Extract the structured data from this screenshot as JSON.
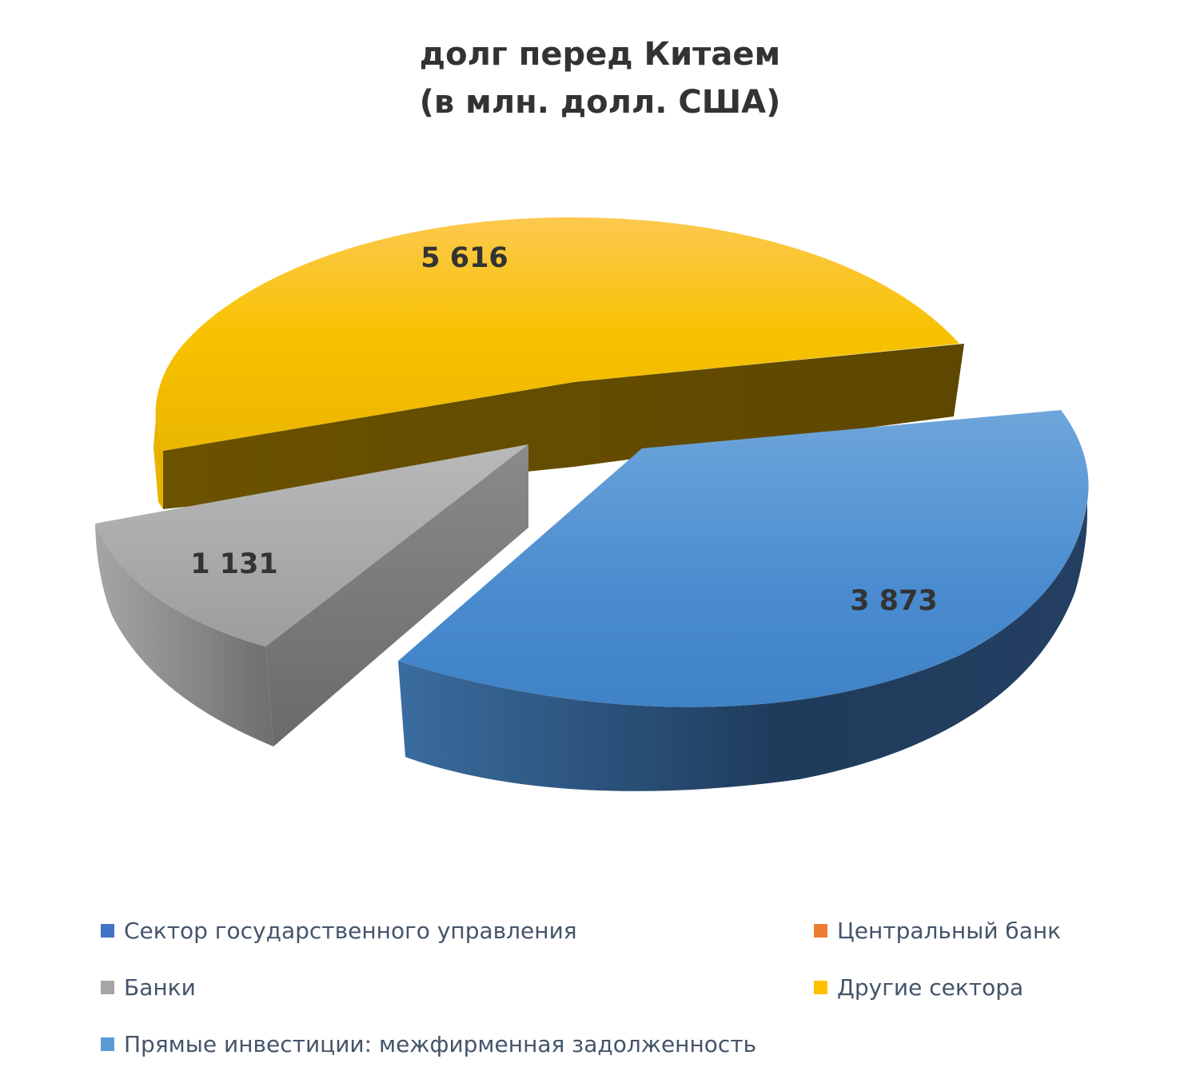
{
  "chart_data": {
    "type": "pie",
    "title_lines": [
      "долг перед Китаем",
      "(в млн. долл. США)"
    ],
    "slices": [
      {
        "name": "Сектор государственного управления",
        "value": 0,
        "label": "",
        "color": "#4472c4"
      },
      {
        "name": "Центральный банк",
        "value": 0,
        "label": "",
        "color": "#ed7d31"
      },
      {
        "name": "Банки",
        "value": 1131,
        "label": "1 131",
        "color": "#a5a5a5"
      },
      {
        "name": "Другие сектора",
        "value": 5616,
        "label": "5 616",
        "color": "#ffc000"
      },
      {
        "name": "Прямые инвестиции: межфирменная задолженность",
        "value": 3873,
        "label": "3 873",
        "color": "#5b9bd5"
      }
    ],
    "legend_position": "bottom",
    "style": "3d-exploded"
  }
}
